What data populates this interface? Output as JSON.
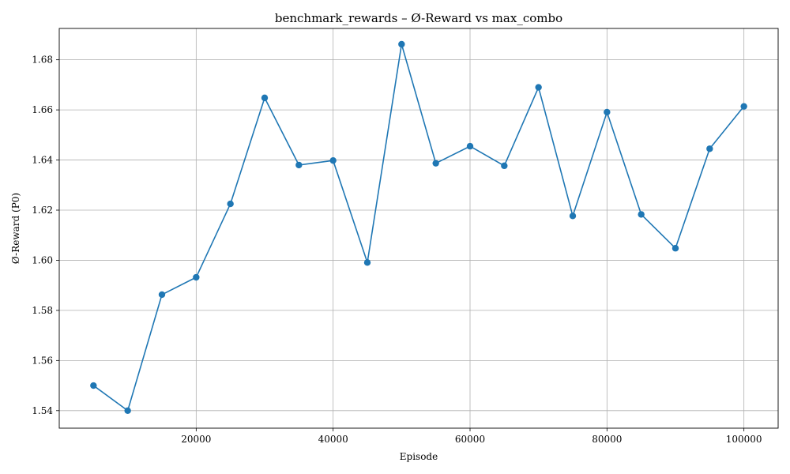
{
  "chart_data": {
    "type": "line",
    "title": "benchmark_rewards – Ø-Reward vs max_combo",
    "xlabel": "Episode",
    "ylabel": "Ø-Reward (P0)",
    "xlim": [
      0,
      105000
    ],
    "ylim": [
      1.533,
      1.6925
    ],
    "xticks": [
      20000,
      40000,
      60000,
      80000,
      100000
    ],
    "yticks": [
      1.54,
      1.56,
      1.58,
      1.6,
      1.62,
      1.64,
      1.66,
      1.68
    ],
    "grid": true,
    "series": [
      {
        "color": "#1f77b4",
        "marker": "circle",
        "x": [
          5000,
          10000,
          15000,
          20000,
          25000,
          30000,
          35000,
          40000,
          45000,
          50000,
          55000,
          60000,
          65000,
          70000,
          75000,
          80000,
          85000,
          90000,
          95000,
          100000
        ],
        "y": [
          1.55,
          1.54,
          1.5863,
          1.5932,
          1.6225,
          1.6648,
          1.638,
          1.6398,
          1.5991,
          1.6862,
          1.6387,
          1.6455,
          1.6377,
          1.669,
          1.6177,
          1.6591,
          1.6183,
          1.6048,
          1.6445,
          1.6614
        ]
      }
    ]
  }
}
